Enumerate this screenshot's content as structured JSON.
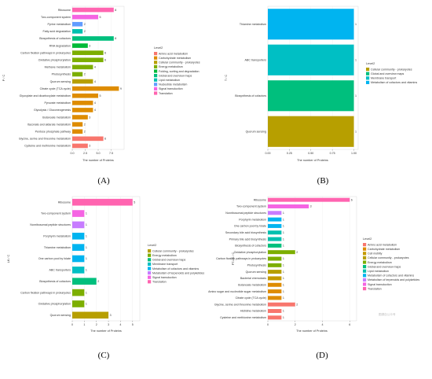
{
  "colors": {
    "Amino acid metabolism": "#F8766D",
    "Carbohydrate metabolism": "#DE8C00",
    "Cell motility": "#C49A00",
    "Cellular community - prokaryotes": "#B79F00",
    "Energy metabolism": "#7CAE00",
    "Folding, sorting and degradation": "#00BA38",
    "Global and overview maps": "#00BF7D",
    "Lipid metabolism": "#00C0AF",
    "Membrane transport": "#00BFC4",
    "Metabolism of cofactors and vitamins": "#00B4F0",
    "Nucleotide metabolism": "#619CFF",
    "Metabolism of terpenoids and polyketides": "#C77CFF",
    "Signal transduction": "#F564E3",
    "Translation": "#FF64B0"
  },
  "chart_data": [
    {
      "type": "bar",
      "panel": "(A)",
      "ylabel": "P / C",
      "xlabel": "The number of Proteins",
      "xlim": [
        0,
        10
      ],
      "xticks": [
        "0.0",
        "2.5",
        "5.0",
        "7.5"
      ],
      "legend_title": "Level2",
      "legend": [
        "Amino acid metabolism",
        "Carbohydrate metabolism",
        "Cellular community - prokaryotes",
        "Energy metabolism",
        "Folding, sorting and degradation",
        "Global and overview maps",
        "Lipid metabolism",
        "Nucleotide metabolism",
        "Signal transduction",
        "Translation"
      ],
      "categories": [
        "Ribosome",
        "Two-component system",
        "Pyrine metabolism",
        "Fatty acid degradation",
        "Biosynthesis of cofactors",
        "RNA degradation",
        "Carbon fixation pathways in prokaryotes",
        "Oxidative phosphorylation",
        "Methane metabolism",
        "Photosynthesis",
        "Quorum sensing",
        "Citrate cycle (TCA cycle)",
        "Glyoxylate and dicarboxylate metabolism",
        "Pyruvate metabolism",
        "Glycolysis / Gluconeogenesis",
        "Butanoate metabolism",
        "Itaconate and aldarate metabolism",
        "Pentose phosphate pathway",
        "Glycine, serine and threonine metabolism",
        "Cysteine and methionine metabolism"
      ],
      "values": [
        8,
        5,
        2,
        2,
        8,
        3,
        6,
        6,
        4,
        2,
        4,
        9,
        5,
        4,
        4,
        3,
        2,
        2,
        6,
        3
      ],
      "groups": [
        "Translation",
        "Signal transduction",
        "Nucleotide metabolism",
        "Lipid metabolism",
        "Global and overview maps",
        "Folding, sorting and degradation",
        "Energy metabolism",
        "Energy metabolism",
        "Energy metabolism",
        "Energy metabolism",
        "Cellular community - prokaryotes",
        "Carbohydrate metabolism",
        "Carbohydrate metabolism",
        "Carbohydrate metabolism",
        "Carbohydrate metabolism",
        "Carbohydrate metabolism",
        "Carbohydrate metabolism",
        "Carbohydrate metabolism",
        "Amino acid metabolism",
        "Amino acid metabolism"
      ]
    },
    {
      "type": "bar",
      "panel": "(B)",
      "ylabel": "T / C",
      "xlabel": "The number of Proteins",
      "xlim": [
        0,
        1.05
      ],
      "xticks": [
        "0.00",
        "0.25",
        "0.50",
        "0.75",
        "1.00"
      ],
      "legend_title": "Level2",
      "legend": [
        "Cellular community - prokaryotes",
        "Global and overview maps",
        "Membrane transport",
        "Metabolism of cofactors and vitamins"
      ],
      "categories": [
        "Thiamine metabolism",
        "ABC transporters",
        "Biosynthesis of cofactors",
        "Quorum sensing"
      ],
      "values": [
        1,
        1,
        1,
        1
      ],
      "groups": [
        "Metabolism of cofactors and vitamins",
        "Membrane transport",
        "Global and overview maps",
        "Cellular community - prokaryotes"
      ]
    },
    {
      "type": "bar",
      "panel": "(C)",
      "ylabel": "LK / C",
      "xlabel": "The number of Proteins",
      "xlim": [
        0,
        5.6
      ],
      "xticks": [
        "0",
        "1",
        "2",
        "3",
        "4",
        "5"
      ],
      "legend_title": "Level2",
      "legend": [
        "Cellular community - prokaryotes",
        "Energy metabolism",
        "Global and overview maps",
        "Membrane transport",
        "Metabolism of cofactors and vitamins",
        "Metabolism of terpenoids and polyketides",
        "Signal transduction",
        "Translation"
      ],
      "categories": [
        "Ribosome",
        "Two-component system",
        "Nonribosomal peptide structures",
        "Porphyrin metabolism",
        "Thiamine metabolism",
        "One carbon pool by folate",
        "ABC transporters",
        "Biosynthesis of cofactors",
        "Carbon fixation pathways in prokaryotes",
        "Oxidative phosphorylation",
        "Quorum sensing"
      ],
      "values": [
        5,
        1,
        1,
        1,
        1,
        1,
        1,
        2,
        1,
        1,
        3
      ],
      "groups": [
        "Translation",
        "Signal transduction",
        "Metabolism of terpenoids and polyketides",
        "Metabolism of cofactors and vitamins",
        "Metabolism of cofactors and vitamins",
        "Metabolism of cofactors and vitamins",
        "Membrane transport",
        "Global and overview maps",
        "Energy metabolism",
        "Energy metabolism",
        "Cellular community - prokaryotes"
      ]
    },
    {
      "type": "bar",
      "panel": "(D)",
      "ylabel": "PT-LK / C",
      "xlabel": "The number of Proteins",
      "xlim": [
        0,
        6.5
      ],
      "xticks": [
        "0",
        "2",
        "4",
        "6"
      ],
      "legend_title": "Level2",
      "legend": [
        "Amino acid metabolism",
        "Carbohydrate metabolism",
        "Cell motility",
        "Cellular community - prokaryotes",
        "Energy metabolism",
        "Global and overview maps",
        "Lipid metabolism",
        "Metabolism of cofactors and vitamins",
        "Metabolism of terpenoids and polyketides",
        "Signal transduction",
        "Translation"
      ],
      "categories": [
        "Ribosome",
        "Two-component system",
        "Nonribosomal peptide structures",
        "Porphyrin metabolism",
        "One carbon pool by folate",
        "Secondary bile acid biosynthesis",
        "Primary bile acid biosynthesis",
        "Biosynthesis of cofactors",
        "Oxidative phosphorylation",
        "Carbon fixation pathways in prokaryotes",
        "Photosynthesis",
        "Quorum sensing",
        "Bacterial chemotaxis",
        "Butanoate metabolism",
        "Amino sugar and nucleotide sugar metabolism",
        "Citrate cycle (TCA cycle)",
        "Glycine, serine and threonine metabolism",
        "Histidine metabolism",
        "Cysteine and methionine metabolism"
      ],
      "values": [
        6,
        3,
        1,
        1,
        1,
        1,
        1,
        1,
        2,
        1,
        1,
        1,
        1,
        1,
        1,
        1,
        2,
        1,
        1
      ],
      "groups": [
        "Translation",
        "Signal transduction",
        "Metabolism of terpenoids and polyketides",
        "Metabolism of cofactors and vitamins",
        "Metabolism of cofactors and vitamins",
        "Lipid metabolism",
        "Lipid metabolism",
        "Global and overview maps",
        "Energy metabolism",
        "Energy metabolism",
        "Energy metabolism",
        "Cellular community - prokaryotes",
        "Cell motility",
        "Carbohydrate metabolism",
        "Carbohydrate metabolism",
        "Carbohydrate metabolism",
        "Amino acid metabolism",
        "Amino acid metabolism",
        "Amino acid metabolism"
      ]
    }
  ],
  "watermark": "图源自公众号"
}
